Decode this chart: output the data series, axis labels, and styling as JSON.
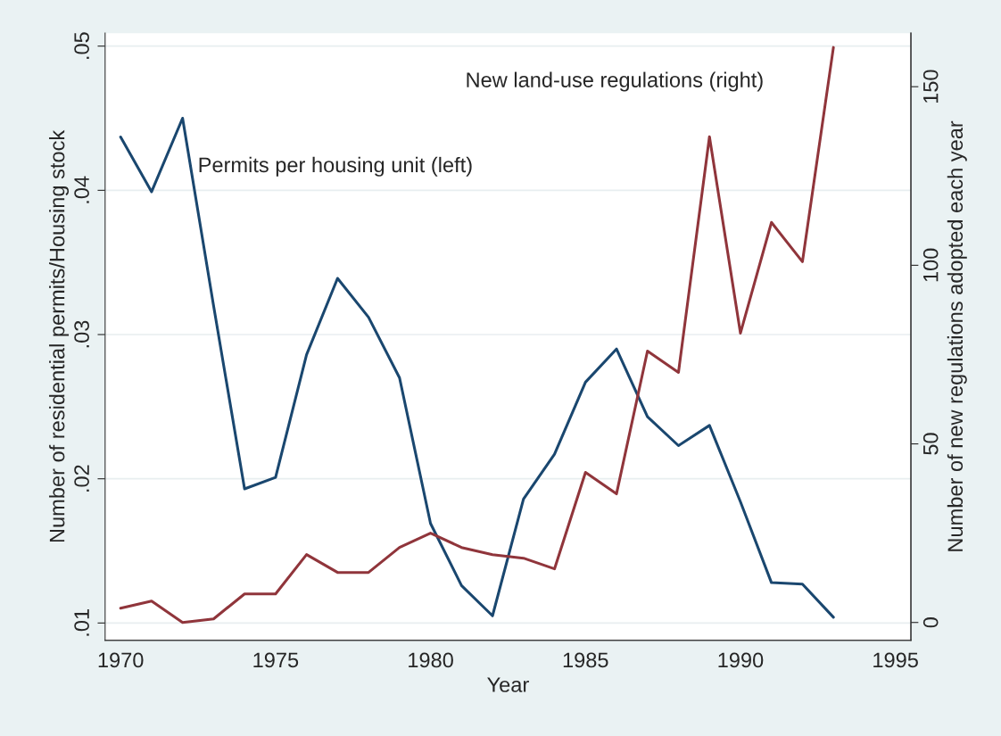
{
  "chart_data": {
    "type": "line",
    "xlabel": "Year",
    "ylabel": "Number of residential permits/Housing stock",
    "y2label": "Number of new regulations adopted each year",
    "x": [
      1970,
      1971,
      1972,
      1973,
      1974,
      1975,
      1976,
      1977,
      1978,
      1979,
      1980,
      1981,
      1982,
      1983,
      1984,
      1985,
      1986,
      1987,
      1988,
      1989,
      1990,
      1991,
      1992,
      1993
    ],
    "series": [
      {
        "color": "#1a476f",
        "values": [
          0.0437,
          0.0399,
          0.045,
          0.032,
          0.0193,
          0.0201,
          0.0286,
          0.0339,
          0.0312,
          0.027,
          0.0169,
          0.0126,
          0.0105,
          0.0186,
          0.0217,
          0.0267,
          0.029,
          0.0243,
          0.0223,
          0.0237,
          0.0184,
          0.0128,
          0.0127,
          0.0104
        ]
      },
      {
        "color": "#90353b",
        "axis": "y2",
        "values": [
          4,
          6,
          0,
          1,
          8,
          8,
          19,
          14,
          14,
          21,
          25,
          21,
          19,
          18,
          15,
          42,
          36,
          76,
          70,
          136,
          81,
          112,
          101,
          161
        ]
      }
    ],
    "xlim": [
      1969.5,
      1995.5
    ],
    "xticks": [
      1970,
      1975,
      1980,
      1985,
      1990,
      1995
    ],
    "ylim": [
      0.0088,
      0.0509
    ],
    "yticks": [
      {
        "value": 0.01,
        "label": ".01"
      },
      {
        "value": 0.02,
        "label": ".02"
      },
      {
        "value": 0.03,
        "label": ".03"
      },
      {
        "value": 0.04,
        "label": ".04"
      },
      {
        "value": 0.05,
        "label": ".05"
      }
    ],
    "y2lim": [
      -5,
      165
    ],
    "y2ticks": [
      0,
      50,
      100,
      150
    ],
    "grid": "y",
    "line_style": "solid",
    "marker": "none",
    "annotations": [
      "Permits per housing unit (left)",
      "New land-use regulations (right)"
    ]
  }
}
